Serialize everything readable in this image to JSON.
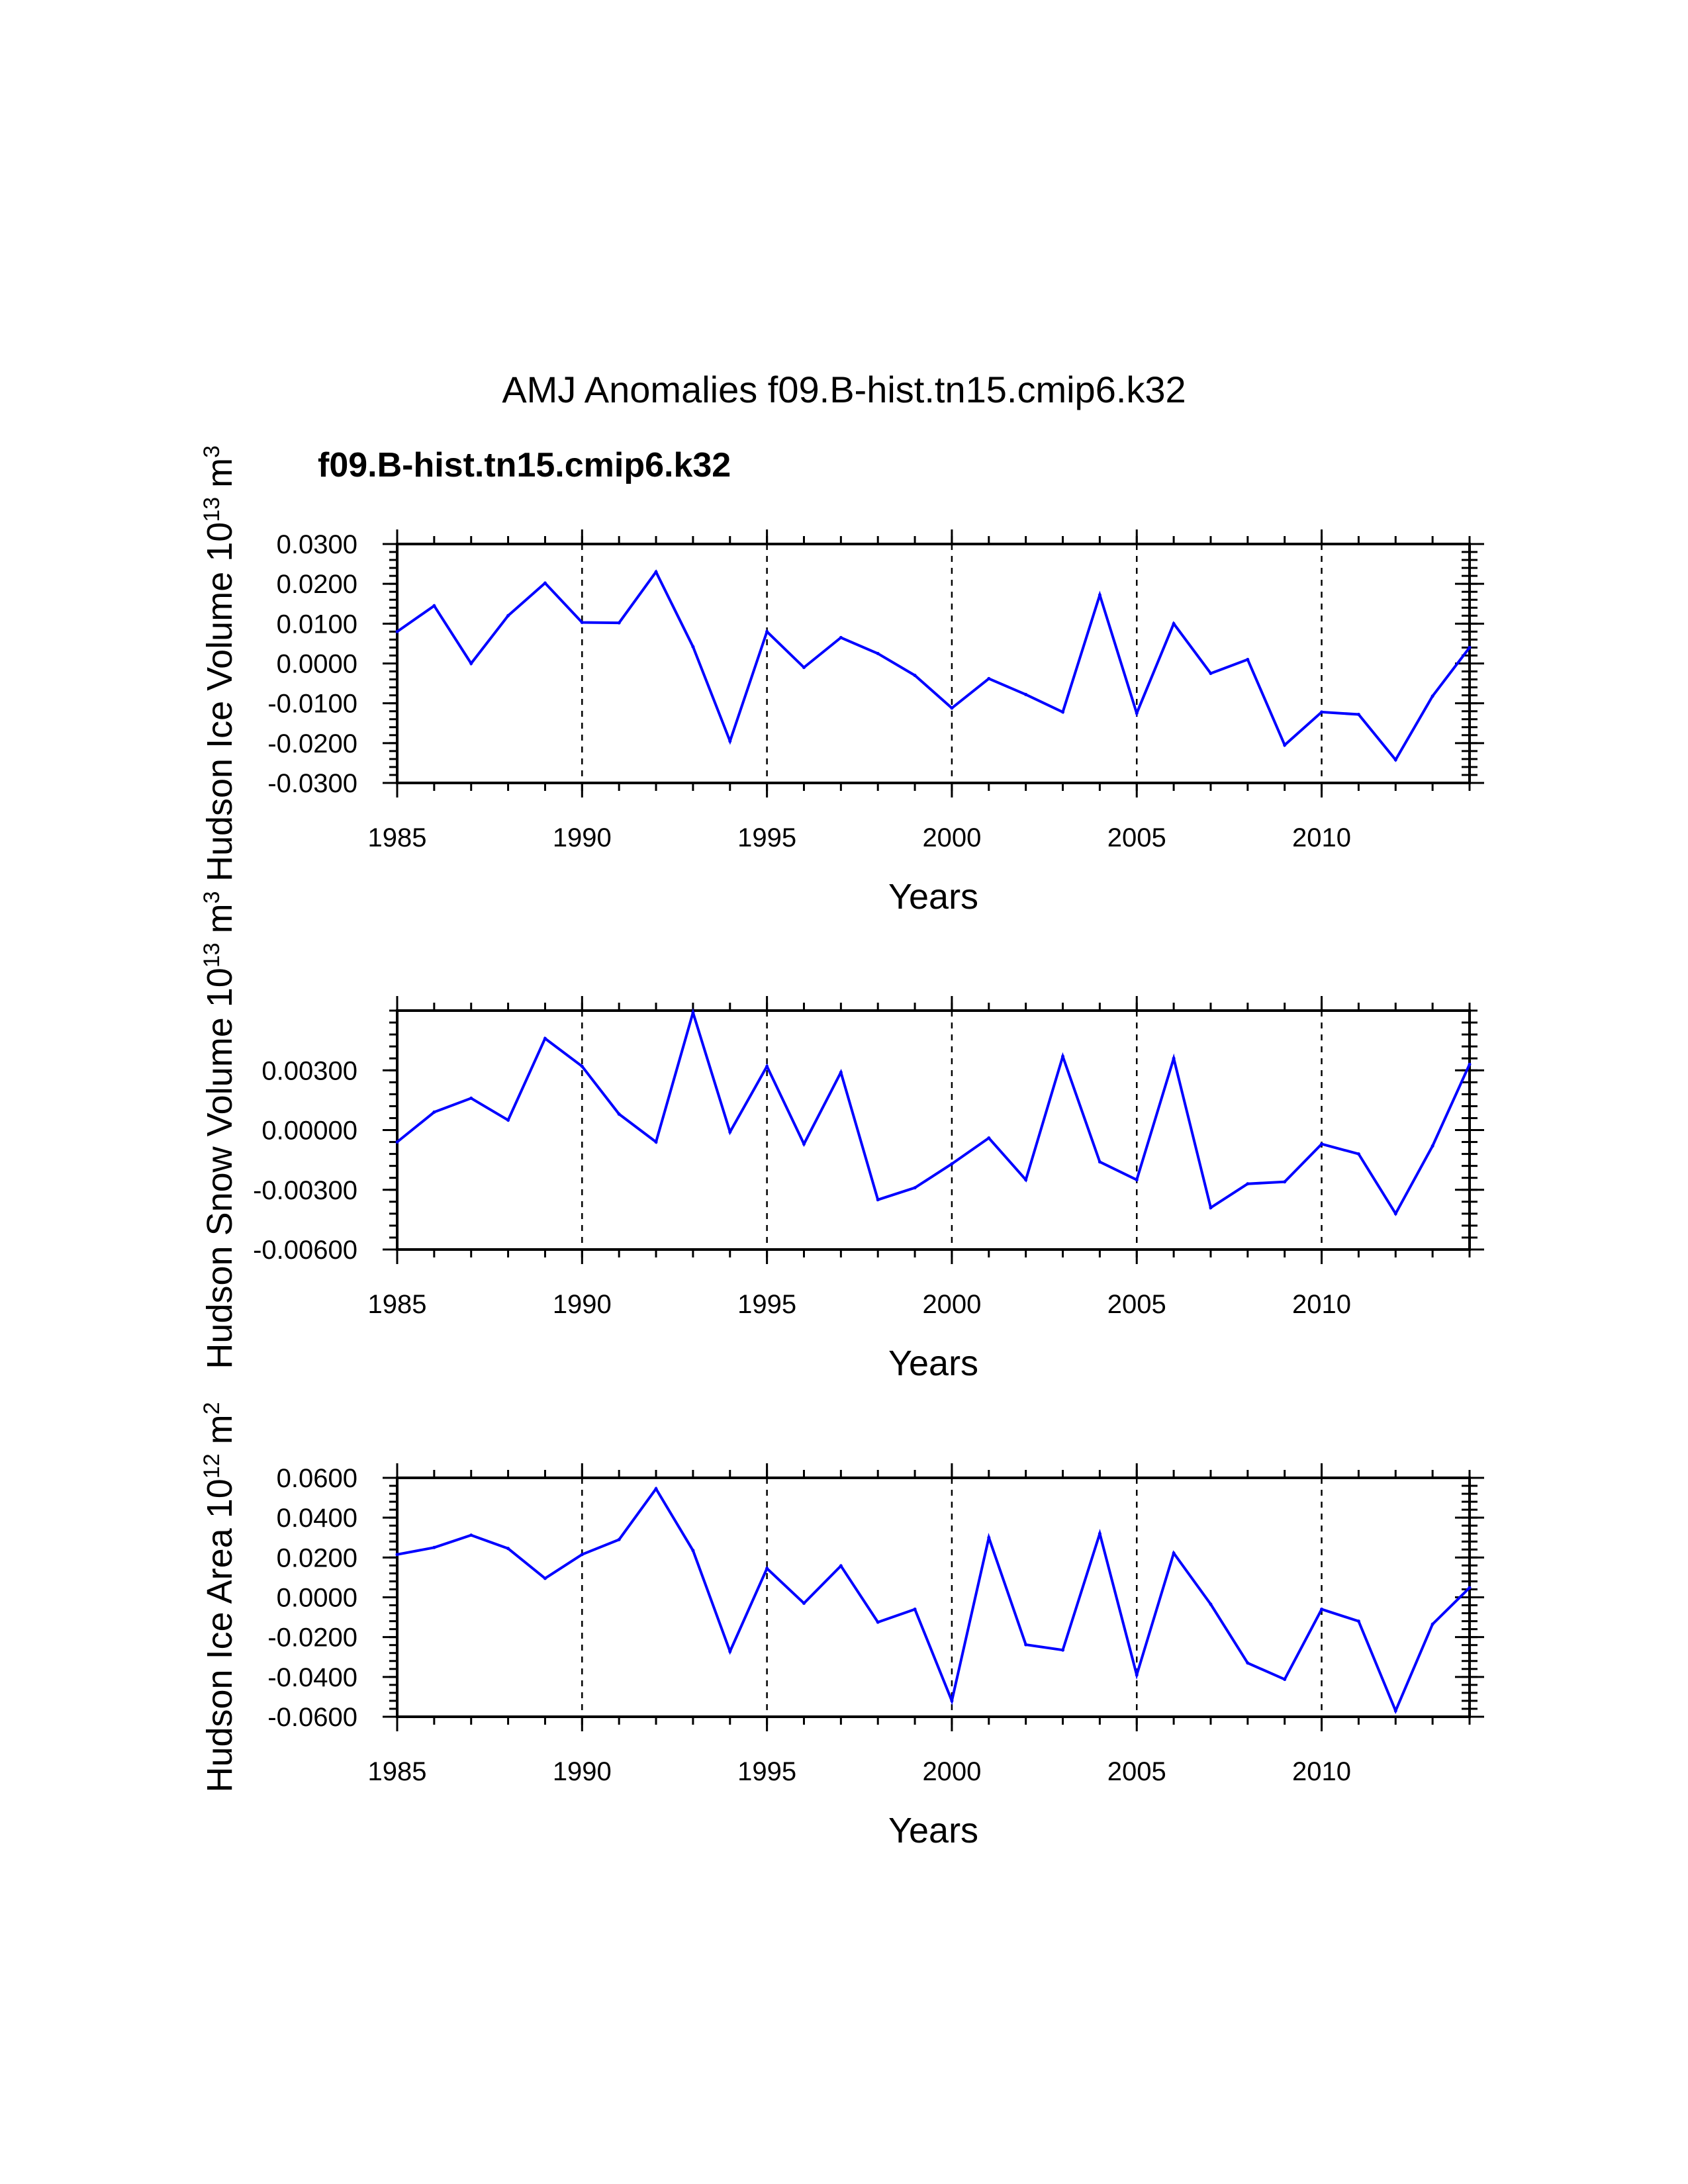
{
  "page": {
    "title": "AMJ Anomalies f09.B-hist.tn15.cmip6.k32",
    "legend_label": "f09.B-hist.tn15.cmip6.k32"
  },
  "colors": {
    "series": "#0000ff",
    "axes": "#000000"
  },
  "chart_data": [
    {
      "type": "line",
      "ylabel": "Hudson Ice Volume 10^13 m^3",
      "ylabel_base": "Hudson Ice Volume 10",
      "ylabel_exp": "13",
      "ylabel_unit": "m",
      "ylabel_unit_exp": "3",
      "xlabel": "Years",
      "xlim": [
        1985,
        2014
      ],
      "ylim": [
        -0.03,
        0.03
      ],
      "grid": "vertical dashed at 1990, 1995, 2000, 2005, 2010",
      "x_ticks": [
        "1985",
        "1990",
        "1995",
        "2000",
        "2005",
        "2010"
      ],
      "y_ticks": [
        "0.0300",
        "0.0200",
        "0.0100",
        "0.0000",
        "-0.0100",
        "-0.0200",
        "-0.0300"
      ],
      "y_tick_values": [
        0.03,
        0.02,
        0.01,
        0.0,
        -0.01,
        -0.02,
        -0.03
      ],
      "y_minor_step": 0.002,
      "x": [
        1985,
        1986,
        1987,
        1988,
        1989,
        1990,
        1991,
        1992,
        1993,
        1994,
        1995,
        1996,
        1997,
        1998,
        1999,
        2000,
        2001,
        2002,
        2003,
        2004,
        2005,
        2006,
        2007,
        2008,
        2009,
        2010,
        2011,
        2012,
        2013,
        2014
      ],
      "series": [
        {
          "name": "f09.B-hist.tn15.cmip6.k32",
          "values": [
            0.008,
            0.0145,
            0.0,
            0.012,
            0.0202,
            0.0103,
            0.0102,
            0.023,
            0.0042,
            -0.0195,
            0.008,
            -0.001,
            0.0065,
            0.0025,
            -0.003,
            -0.0112,
            -0.0038,
            -0.0078,
            -0.0122,
            0.0172,
            -0.0125,
            0.01,
            -0.0025,
            0.001,
            -0.0205,
            -0.0122,
            -0.0128,
            -0.0242,
            -0.0082,
            0.004
          ]
        }
      ]
    },
    {
      "type": "line",
      "ylabel": "Hudson Snow Volume 10^13 m^3",
      "ylabel_base": "Hudson Snow Volume 10",
      "ylabel_exp": "13",
      "ylabel_unit": "m",
      "ylabel_unit_exp": "3",
      "xlabel": "Years",
      "xlim": [
        1985,
        2014
      ],
      "ylim": [
        -0.006,
        0.006
      ],
      "grid": "vertical dashed at 1990, 1995, 2000, 2005, 2010",
      "x_ticks": [
        "1985",
        "1990",
        "1995",
        "2000",
        "2005",
        "2010"
      ],
      "y_ticks": [
        "0.00300",
        "0.00000",
        "-0.00300",
        "-0.00600"
      ],
      "y_tick_values": [
        0.003,
        0.0,
        -0.003,
        -0.006
      ],
      "y_minor_step": 0.0006,
      "x": [
        1985,
        1986,
        1987,
        1988,
        1989,
        1990,
        1991,
        1992,
        1993,
        1994,
        1995,
        1996,
        1997,
        1998,
        1999,
        2000,
        2001,
        2002,
        2003,
        2004,
        2005,
        2006,
        2007,
        2008,
        2009,
        2010,
        2011,
        2012,
        2013,
        2014
      ],
      "series": [
        {
          "name": "f09.B-hist.tn15.cmip6.k32",
          "values": [
            -0.0006,
            0.0009,
            0.0016,
            0.0005,
            0.0046,
            0.0032,
            0.0008,
            -0.0006,
            0.0059,
            -0.0001,
            0.0032,
            -0.0007,
            0.0029,
            -0.0035,
            -0.0029,
            -0.0017,
            -0.0004,
            -0.0025,
            0.0037,
            -0.0016,
            -0.0025,
            0.0036,
            -0.0039,
            -0.0027,
            -0.0026,
            -0.0007,
            -0.0012,
            -0.0042,
            -0.0008,
            0.0033
          ]
        }
      ]
    },
    {
      "type": "line",
      "ylabel": "Hudson Ice Area 10^12 m^2",
      "ylabel_base": "Hudson Ice Area 10",
      "ylabel_exp": "12",
      "ylabel_unit": "m",
      "ylabel_unit_exp": "2",
      "xlabel": "Years",
      "xlim": [
        1985,
        2014
      ],
      "ylim": [
        -0.06,
        0.06
      ],
      "grid": "vertical dashed at 1990, 1995, 2000, 2005, 2010",
      "x_ticks": [
        "1985",
        "1990",
        "1995",
        "2000",
        "2005",
        "2010"
      ],
      "y_ticks": [
        "0.0600",
        "0.0400",
        "0.0200",
        "0.0000",
        "-0.0200",
        "-0.0400",
        "-0.0600"
      ],
      "y_tick_values": [
        0.06,
        0.04,
        0.02,
        0.0,
        -0.02,
        -0.04,
        -0.06
      ],
      "y_minor_step": 0.004,
      "x": [
        1985,
        1986,
        1987,
        1988,
        1989,
        1990,
        1991,
        1992,
        1993,
        1994,
        1995,
        1996,
        1997,
        1998,
        1999,
        2000,
        2001,
        2002,
        2003,
        2004,
        2005,
        2006,
        2007,
        2008,
        2009,
        2010,
        2011,
        2012,
        2013,
        2014
      ],
      "series": [
        {
          "name": "f09.B-hist.tn15.cmip6.k32",
          "values": [
            0.0215,
            0.025,
            0.0312,
            0.0245,
            0.0095,
            0.0215,
            0.029,
            0.0545,
            0.0235,
            -0.0272,
            0.0145,
            -0.003,
            0.0158,
            -0.0125,
            -0.006,
            -0.052,
            0.03,
            -0.0238,
            -0.0265,
            0.032,
            -0.039,
            0.0222,
            -0.0035,
            -0.033,
            -0.0412,
            -0.006,
            -0.012,
            -0.057,
            -0.0135,
            0.0048
          ]
        }
      ]
    }
  ]
}
